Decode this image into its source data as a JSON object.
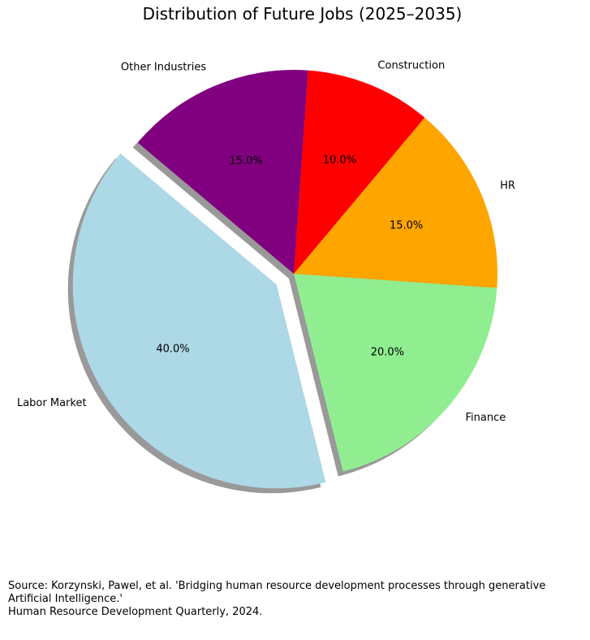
{
  "chart_data": {
    "type": "pie",
    "title": "Distribution of Future Jobs (2025–2035)",
    "categories": [
      "Labor Market",
      "Finance",
      "HR",
      "Construction",
      "Other Industries"
    ],
    "values": [
      40.0,
      20.0,
      15.0,
      10.0,
      15.0
    ],
    "value_labels": [
      "40.0%",
      "20.0%",
      "15.0%",
      "10.0%",
      "15.0%"
    ],
    "colors": [
      "#add8e6",
      "#90ee90",
      "#ffa500",
      "#ff0000",
      "#800080"
    ],
    "explode": [
      0.1,
      0,
      0,
      0,
      0
    ],
    "start_angle": 140,
    "direction": "counterclockwise",
    "shadow": true
  },
  "source": {
    "line1": "Source: Korzynski, Pawel, et al. 'Bridging human resource development processes through generative",
    "line2": "Artificial Intelligence.'",
    "line3": "Human Resource Development Quarterly, 2024."
  }
}
